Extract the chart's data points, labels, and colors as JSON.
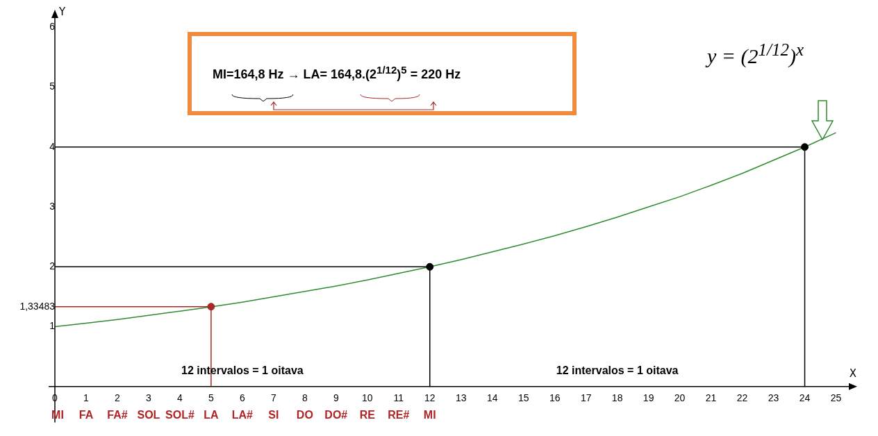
{
  "chart_data": {
    "type": "line",
    "xlabel": "X",
    "ylabel": "Y",
    "xlim": [
      -0.2,
      25.5
    ],
    "ylim": [
      -0.6,
      6.2
    ],
    "xticks": [
      0,
      1,
      2,
      3,
      4,
      5,
      6,
      7,
      8,
      9,
      10,
      11,
      12,
      13,
      14,
      15,
      16,
      17,
      18,
      19,
      20,
      21,
      22,
      23,
      24,
      25
    ],
    "yticks": [
      1,
      {
        "value": 1.33483,
        "label": "1,33483"
      },
      2,
      3,
      4,
      5,
      6
    ],
    "grid": false,
    "legend": false,
    "series": [
      {
        "type": "line",
        "color": "#2e8b2e",
        "marker": "none",
        "x": [
          0,
          1,
          2,
          3,
          4,
          5,
          6,
          7,
          8,
          9,
          10,
          11,
          12,
          13,
          14,
          15,
          16,
          17,
          18,
          19,
          20,
          21,
          22,
          23,
          24,
          25
        ],
        "values": [
          1,
          1.06,
          1.12,
          1.19,
          1.26,
          1.33,
          1.41,
          1.5,
          1.59,
          1.68,
          1.78,
          1.89,
          2,
          2.12,
          2.25,
          2.38,
          2.52,
          2.67,
          2.83,
          3,
          3.17,
          3.36,
          3.56,
          3.78,
          4,
          4.24
        ]
      },
      {
        "type": "line",
        "color": "#b22222",
        "marker": "none",
        "x": [
          0,
          5,
          5
        ],
        "values": [
          1.33483,
          1.33483,
          0
        ]
      },
      {
        "type": "line",
        "color": "#000000",
        "marker": "none",
        "x": [
          0,
          12,
          12
        ],
        "values": [
          2,
          2,
          0
        ]
      },
      {
        "type": "line",
        "color": "#000000",
        "marker": "none",
        "x": [
          0,
          24,
          24
        ],
        "values": [
          4,
          4,
          0
        ]
      },
      {
        "type": "scatter",
        "marker": "circle",
        "colors": [
          "#a52a2a",
          "#000000",
          "#000000"
        ],
        "x": [
          5,
          12,
          24
        ],
        "values": [
          1.33483,
          2,
          4
        ]
      }
    ],
    "annotations": [
      "MI=164,8 Hz → LA= 164,8.(2$^{1/12}$)$^{5}$ = 220 Hz",
      "y = (2$^{1/12}$)$^{x}$",
      "12 intervalos = 1 oitava",
      "12 intervalos = 1 oitava",
      "MI",
      "FA",
      "FA#",
      "SOL",
      "SOL#",
      "LA",
      "LA#",
      "SI",
      "DO",
      "DO#",
      "RE",
      "RE#",
      "MI"
    ]
  }
}
